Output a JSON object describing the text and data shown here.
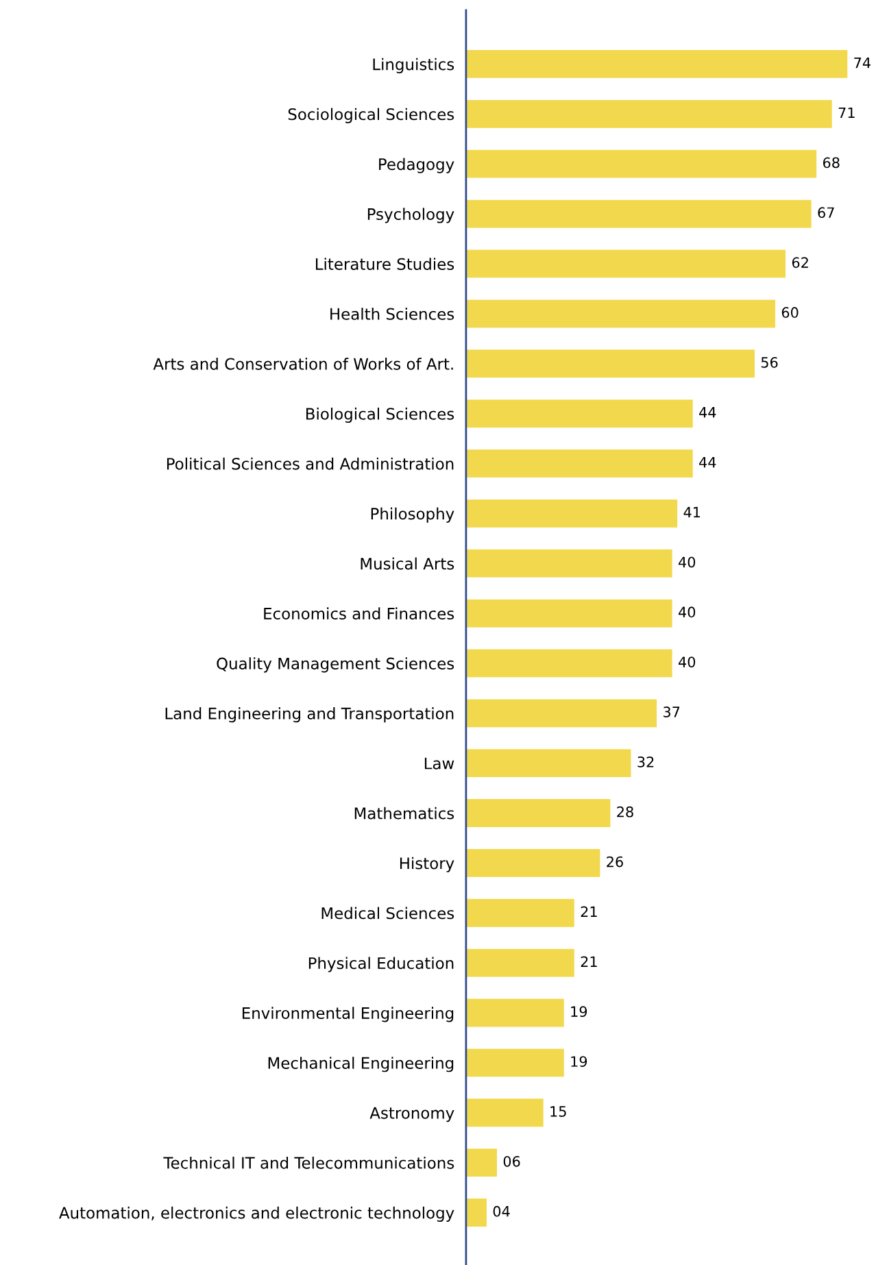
{
  "chart_data": {
    "type": "bar",
    "orientation": "horizontal",
    "categories": [
      "Linguistics",
      "Sociological Sciences",
      "Pedagogy",
      "Psychology",
      "Literature Studies",
      "Health Sciences",
      "Arts and Conservation of Works of Art.",
      "Biological Sciences",
      "Political Sciences and Administration",
      "Philosophy",
      "Musical Arts",
      "Economics and Finances",
      "Quality Management Sciences",
      "Land Engineering and Transportation",
      "Law",
      "Mathematics",
      "History",
      "Medical Sciences",
      "Physical Education",
      "Environmental Engineering",
      "Mechanical Engineering",
      "Astronomy",
      "Technical IT and Telecommunications",
      "Automation, electronics and electronic technology"
    ],
    "values": [
      74,
      71,
      68,
      67,
      62,
      60,
      56,
      44,
      44,
      41,
      40,
      40,
      40,
      37,
      32,
      28,
      26,
      21,
      21,
      19,
      19,
      15,
      6,
      4
    ],
    "value_labels": [
      "74",
      "71",
      "68",
      "67",
      "62",
      "60",
      "56",
      "44",
      "44",
      "41",
      "40",
      "40",
      "40",
      "37",
      "32",
      "28",
      "26",
      "21",
      "21",
      "19",
      "19",
      "15",
      "06",
      "04"
    ],
    "color": "#f2d84c",
    "tick_labels": "y",
    "grid": false
  }
}
